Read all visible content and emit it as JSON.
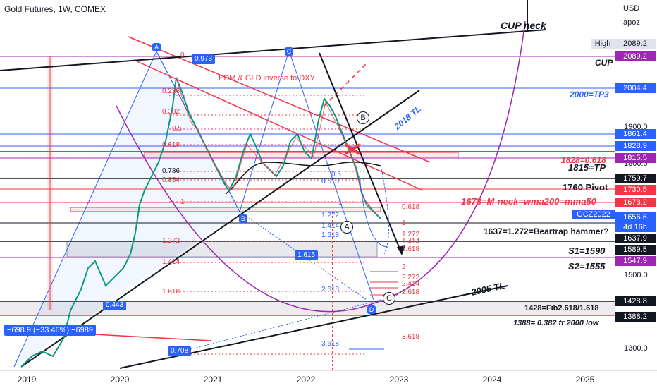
{
  "header": {
    "title": "Gold Futures, 1W, COMEX"
  },
  "price_axis": {
    "currency": "USD",
    "mode": "apoz",
    "ticks": [
      "1900.0",
      "1800.0",
      "1500.0",
      "1300.0"
    ],
    "tags": [
      {
        "text": "High",
        "style": "high"
      },
      {
        "text": "2089.2",
        "color": "#9c27b0"
      },
      {
        "text": "2004.4",
        "color": "#2962ff"
      },
      {
        "text": "1861.4",
        "color": "#2962ff"
      },
      {
        "text": "1828.9",
        "color": "#2962ff"
      },
      {
        "text": "1815.5",
        "color": "#9c27b0"
      },
      {
        "text": "1759.7",
        "color": "#131722"
      },
      {
        "text": "1730.5",
        "color": "#f23645"
      },
      {
        "text": "1678.2",
        "color": "#f23645"
      },
      {
        "text": "GCZ2022",
        "color": "#2962ff"
      },
      {
        "text": "1656.6",
        "color": "#2962ff"
      },
      {
        "text": "4d 16h",
        "color": "#2962ff"
      },
      {
        "text": "1637.9",
        "color": "#131722"
      },
      {
        "text": "1589.5",
        "color": "#131722"
      },
      {
        "text": "1547.9",
        "color": "#9c27b0"
      },
      {
        "text": "1428.8",
        "color": "#131722"
      },
      {
        "text": "1388.2",
        "color": "#131722"
      }
    ]
  },
  "time_axis": {
    "ticks": [
      "2019",
      "2020",
      "2021",
      "2022",
      "2023",
      "2024",
      "2025"
    ]
  },
  "annotations": {
    "cup_neck": "CUP neck",
    "cup": "CUP",
    "tp3": "2000=TP3",
    "edm": "EDM & GLD inverse to DXY",
    "tl2018": "2018 TL",
    "tl2005": "2005 TL",
    "l1828": "1828=0.618",
    "l1815": "1815=TP",
    "l1760": "1760 Pivot",
    "l1678": "1678=M-neck=wma200=mma50",
    "l1637": "1637=1.272=Beartrap hammer?",
    "s1": "S1=1590",
    "s2": "S2=1555",
    "l1428": "1428=Fib2.618/1.618",
    "l1388": "1388= 0.382 fr 2000 low",
    "measure": "−698.9 (−33.46%) −6989",
    "v0973": "0.973",
    "v0443": "0.443",
    "v0708": "0.708",
    "v1615": "1.615"
  },
  "fib_left": [
    "0",
    "0.236",
    "0.382",
    "0.5",
    "0.618",
    "0.786",
    "0.854",
    "1",
    "1.272",
    "1.414",
    "1.618"
  ],
  "fib_mid": [
    "0.5",
    "0.618",
    "1",
    "1.272",
    "1.414",
    "1.618",
    "2.618",
    "3.618"
  ],
  "fib_right": [
    "0.618",
    "1",
    "1.272",
    "1.414",
    "1.618",
    "2",
    "2.272",
    "2.414",
    "2.618",
    "3.618"
  ],
  "markers": {
    "A": "A",
    "B": "B",
    "C": "C",
    "D": "D",
    "circle_B": "B",
    "circle_A": "A",
    "circle_C": "C"
  }
}
